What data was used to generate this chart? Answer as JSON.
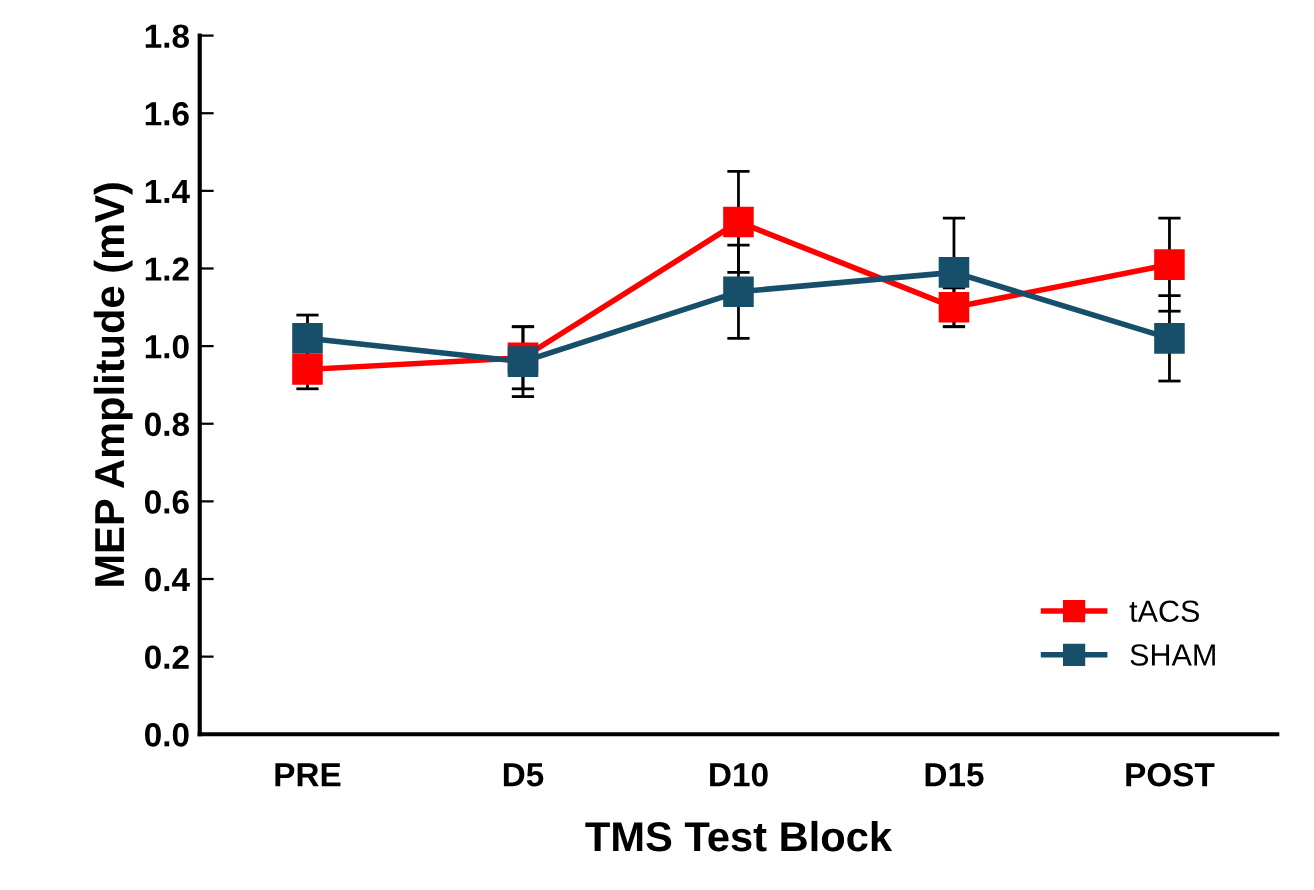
{
  "chart_data": {
    "type": "line",
    "xlabel": "TMS Test Block",
    "ylabel": "MEP Amplitude (mV)",
    "categories": [
      "PRE",
      "D5",
      "D10",
      "D15",
      "POST"
    ],
    "series": [
      {
        "name": "tACS",
        "color": "#ff0000",
        "values": [
          0.94,
          0.97,
          1.32,
          1.1,
          1.21
        ],
        "errors": [
          0.05,
          0.08,
          0.13,
          0.05,
          0.12
        ]
      },
      {
        "name": "SHAM",
        "color": "#174f6b",
        "values": [
          1.02,
          0.96,
          1.14,
          1.19,
          1.02
        ],
        "errors": [
          0.06,
          0.09,
          0.12,
          0.14,
          0.11
        ]
      }
    ],
    "ylim": [
      0,
      1.8
    ],
    "yticks": [
      {
        "value": 0,
        "label": "0.0"
      },
      0.2,
      0.4,
      0.6,
      0.8,
      {
        "value": 1,
        "label": "1.0"
      },
      1.2,
      1.4,
      1.6,
      1.8
    ],
    "marker": "square",
    "legend": "bottom right",
    "grid": false
  }
}
